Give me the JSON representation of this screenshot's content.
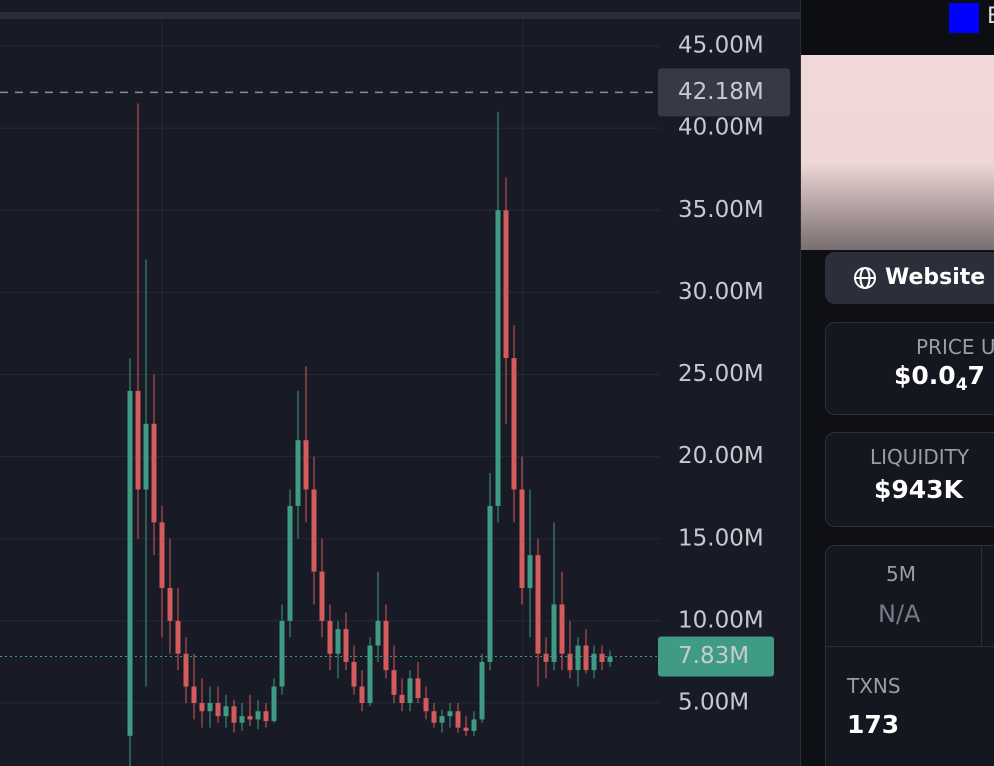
{
  "chart": {
    "yticks": [
      {
        "value": 45,
        "label": "45.00M"
      },
      {
        "value": 40,
        "label": "40.00M"
      },
      {
        "value": 35,
        "label": "35.00M"
      },
      {
        "value": 30,
        "label": "30.00M"
      },
      {
        "value": 25,
        "label": "25.00M"
      },
      {
        "value": 20,
        "label": "20.00M"
      },
      {
        "value": 15,
        "label": "15.00M"
      },
      {
        "value": 10,
        "label": "10.00M"
      },
      {
        "value": 5,
        "label": "5.00M"
      }
    ],
    "high_marker": {
      "value": 42.18,
      "label": "42.18M"
    },
    "last_price": {
      "value": 7.83,
      "label": "7.83M"
    },
    "up_color": "#3f9b84",
    "down_color": "#d45b5b",
    "candles": [
      [
        3,
        26,
        0,
        24
      ],
      [
        24,
        41.5,
        15,
        18
      ],
      [
        18,
        32,
        6,
        22
      ],
      [
        22,
        25,
        14,
        16
      ],
      [
        16,
        17,
        9,
        12
      ],
      [
        12,
        15,
        8,
        10
      ],
      [
        10,
        12,
        7,
        8
      ],
      [
        8,
        9,
        5,
        6
      ],
      [
        6,
        8,
        4,
        5
      ],
      [
        5,
        6.5,
        3.5,
        4.5
      ],
      [
        4.5,
        6,
        3.5,
        5
      ],
      [
        5,
        6,
        3.8,
        4.2
      ],
      [
        4.2,
        5.5,
        3.5,
        4.8
      ],
      [
        4.8,
        5.2,
        3.2,
        3.8
      ],
      [
        3.8,
        5,
        3.3,
        4.2
      ],
      [
        4.2,
        5.5,
        3.6,
        4
      ],
      [
        4,
        5.2,
        3.4,
        4.5
      ],
      [
        4.5,
        5,
        3.5,
        3.9
      ],
      [
        3.9,
        6.5,
        3.8,
        6
      ],
      [
        6,
        11,
        5.5,
        10
      ],
      [
        10,
        18,
        9,
        17
      ],
      [
        17,
        24,
        15,
        21
      ],
      [
        21,
        25.5,
        16,
        18
      ],
      [
        18,
        20,
        11,
        13
      ],
      [
        13,
        15,
        9,
        10
      ],
      [
        10,
        11,
        7,
        8
      ],
      [
        8,
        10,
        6.5,
        9.5
      ],
      [
        9.5,
        10.5,
        7,
        7.5
      ],
      [
        7.5,
        8.5,
        5.5,
        6
      ],
      [
        6,
        7,
        4.5,
        5
      ],
      [
        5,
        9,
        4.8,
        8.5
      ],
      [
        8.5,
        13,
        7.5,
        10
      ],
      [
        10,
        11,
        6.5,
        7
      ],
      [
        7,
        8.5,
        5,
        5.5
      ],
      [
        5.5,
        6.5,
        4.5,
        5
      ],
      [
        5,
        7,
        4.5,
        6.5
      ],
      [
        6.5,
        7.5,
        5,
        5.3
      ],
      [
        5.3,
        6,
        4,
        4.5
      ],
      [
        4.5,
        5,
        3.5,
        3.8
      ],
      [
        3.8,
        4.6,
        3.2,
        4.2
      ],
      [
        4.2,
        5,
        3.5,
        4.5
      ],
      [
        4.5,
        5,
        3.2,
        3.5
      ],
      [
        3.5,
        4.2,
        3,
        3.3
      ],
      [
        3.3,
        4.5,
        3,
        4
      ],
      [
        4,
        8,
        3.8,
        7.5
      ],
      [
        7.5,
        19,
        7,
        17
      ],
      [
        17,
        41,
        16,
        35
      ],
      [
        35,
        37,
        22,
        26
      ],
      [
        26,
        28,
        16,
        18
      ],
      [
        18,
        20,
        11,
        12
      ],
      [
        12,
        18,
        9,
        14
      ],
      [
        14,
        15,
        6,
        8
      ],
      [
        8,
        9,
        6.5,
        7.5
      ],
      [
        7.5,
        16,
        7,
        11
      ],
      [
        11,
        13,
        7,
        8
      ],
      [
        8,
        10,
        6.5,
        7
      ],
      [
        7,
        9,
        6,
        8.5
      ],
      [
        8.5,
        9.5,
        6.8,
        7
      ],
      [
        7,
        8.5,
        6.5,
        8
      ],
      [
        8,
        8.5,
        7,
        7.5
      ],
      [
        7.5,
        8.2,
        7.2,
        7.83
      ]
    ]
  },
  "panel": {
    "top_label": "E",
    "website": "Website",
    "price_label": "PRICE U",
    "price_main": "$0.0",
    "price_sub": "4",
    "price_tail": "7",
    "liquidity_label": "LIQUIDITY",
    "liquidity_value": "$943K",
    "stat_label": "5M",
    "stat_value": "N/A",
    "txns_label": "TXNS",
    "txns_value": "173"
  }
}
